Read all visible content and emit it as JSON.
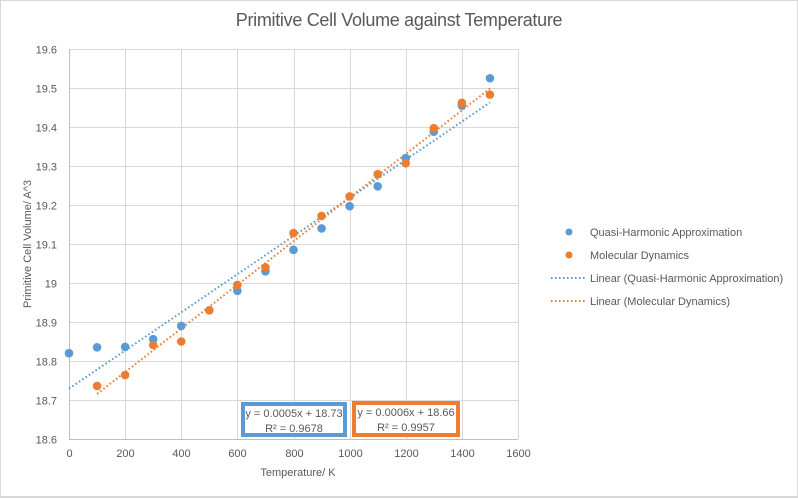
{
  "chart_data": {
    "type": "scatter",
    "title": "Primitive Cell Volume against Temperature",
    "xlabel": "Temperature/  K",
    "ylabel": "Primitive Cell Volume/ A^3",
    "xlim": [
      0,
      1600
    ],
    "ylim": [
      18.6,
      19.6
    ],
    "xticks": [
      0,
      200,
      400,
      600,
      800,
      1000,
      1200,
      1400,
      1600
    ],
    "yticks": [
      18.6,
      18.7,
      18.8,
      18.9,
      19.0,
      19.1,
      19.2,
      19.3,
      19.4,
      19.5,
      19.6
    ],
    "ytick_labels": [
      "18.6",
      "18.7",
      "18.8",
      "18.9",
      "19",
      "19.1",
      "19.2",
      "19.3",
      "19.4",
      "19.5",
      "19.6"
    ],
    "grid": true,
    "legend_position": "right",
    "series": [
      {
        "name": "Quasi-Harmonic Approximation",
        "color": "#5b9bd5",
        "x": [
          0,
          100,
          200,
          300,
          400,
          500,
          600,
          700,
          800,
          900,
          1000,
          1100,
          1200,
          1300,
          1400,
          1500
        ],
        "y": [
          18.82,
          18.835,
          18.836,
          18.856,
          18.89,
          18.93,
          18.98,
          19.03,
          19.085,
          19.14,
          19.197,
          19.248,
          19.32,
          19.388,
          19.455,
          19.525
        ]
      },
      {
        "name": "Molecular Dynamics",
        "color": "#ed7d31",
        "x": [
          100,
          200,
          300,
          400,
          500,
          600,
          700,
          800,
          900,
          1000,
          1100,
          1200,
          1300,
          1400,
          1500
        ],
        "y": [
          18.736,
          18.764,
          18.841,
          18.85,
          18.93,
          18.995,
          19.04,
          19.128,
          19.172,
          19.222,
          19.279,
          19.307,
          19.397,
          19.462,
          19.483
        ]
      }
    ],
    "trendlines": [
      {
        "name": "Linear (Quasi-Harmonic Approximation)",
        "series": 0,
        "color": "#5b9bd5",
        "equation": "y = 0.0005x + 18.73",
        "r_squared": "R² = 0.9678",
        "box_color": "#5b9bd5"
      },
      {
        "name": "Linear (Molecular Dynamics)",
        "series": 1,
        "color": "#ed7d31",
        "equation": "y = 0.0006x + 18.66",
        "r_squared": "R² = 0.9957",
        "box_color": "#ed7d31"
      }
    ],
    "legend": [
      "Quasi-Harmonic Approximation",
      "Molecular Dynamics",
      "Linear (Quasi-Harmonic Approximation)",
      "Linear (Molecular Dynamics)"
    ]
  }
}
